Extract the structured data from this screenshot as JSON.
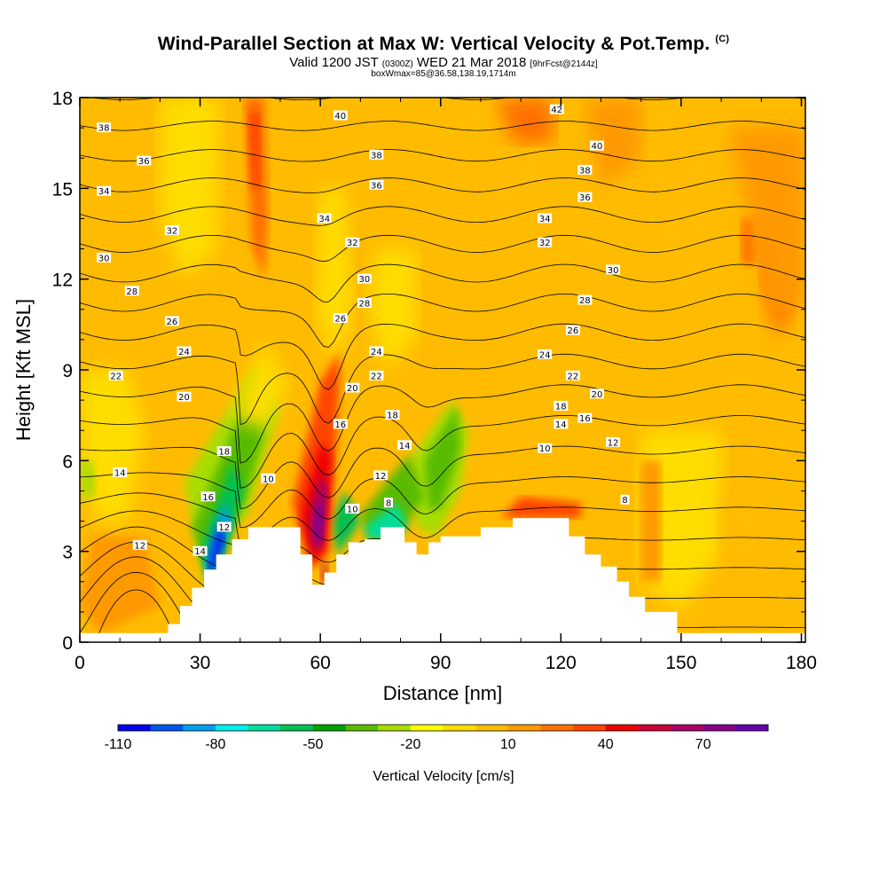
{
  "header": {
    "title": "Wind-Parallel Section at Max W: Vertical Velocity & Pot.Temp.",
    "title_tag": "(C)",
    "subtitle_a": "Valid 1200 JST",
    "subtitle_b": "(0300Z)",
    "subtitle_c": "WED 21 Mar 2018",
    "subtitle_d": "[9hrFcst@2144z]",
    "subtitle_line2": "boxWmax=85@36.58,138.19,1714m"
  },
  "chart_data": {
    "type": "heatmap",
    "xlabel": "Distance [nm]",
    "ylabel": "Height [Kft MSL]",
    "xlim": [
      0,
      181
    ],
    "ylim": [
      0,
      18
    ],
    "x_ticks": [
      "0",
      "30",
      "60",
      "90",
      "120",
      "150",
      "180"
    ],
    "y_ticks": [
      "0",
      "3",
      "6",
      "9",
      "12",
      "15",
      "18"
    ],
    "colorbar": {
      "label": "Vertical Velocity [cm/s]",
      "tick_labels": [
        "-110",
        "-80",
        "-50",
        "-20",
        "10",
        "40",
        "70"
      ],
      "colors": [
        "#0000ee",
        "#0055ee",
        "#00a0ee",
        "#00eeee",
        "#00dd99",
        "#00c050",
        "#00a000",
        "#58bb00",
        "#a8dd00",
        "#ffff00",
        "#ffdd00",
        "#ffbb00",
        "#ff9900",
        "#ff7000",
        "#ff4400",
        "#ee0000",
        "#cc0033",
        "#aa0066",
        "#880088",
        "#6600aa"
      ]
    },
    "terrain": [
      [
        0,
        0.3
      ],
      [
        22,
        0.3
      ],
      [
        22,
        0.6
      ],
      [
        25,
        0.6
      ],
      [
        25,
        1.2
      ],
      [
        28,
        1.2
      ],
      [
        28,
        1.8
      ],
      [
        31,
        1.8
      ],
      [
        31,
        2.4
      ],
      [
        34,
        2.4
      ],
      [
        34,
        2.9
      ],
      [
        38,
        2.9
      ],
      [
        38,
        3.4
      ],
      [
        42,
        3.4
      ],
      [
        42,
        3.8
      ],
      [
        55,
        3.8
      ],
      [
        55,
        2.9
      ],
      [
        58,
        2.9
      ],
      [
        58,
        1.9
      ],
      [
        61,
        1.9
      ],
      [
        61,
        2.3
      ],
      [
        64,
        2.3
      ],
      [
        64,
        2.9
      ],
      [
        67,
        2.9
      ],
      [
        67,
        3.3
      ],
      [
        71,
        3.3
      ],
      [
        71,
        3.4
      ],
      [
        75,
        3.4
      ],
      [
        75,
        3.8
      ],
      [
        81,
        3.8
      ],
      [
        81,
        3.3
      ],
      [
        84,
        3.3
      ],
      [
        84,
        2.9
      ],
      [
        87,
        2.9
      ],
      [
        87,
        3.3
      ],
      [
        90,
        3.3
      ],
      [
        90,
        3.5
      ],
      [
        100,
        3.5
      ],
      [
        100,
        3.8
      ],
      [
        108,
        3.8
      ],
      [
        108,
        4.1
      ],
      [
        122,
        4.1
      ],
      [
        122,
        3.5
      ],
      [
        126,
        3.5
      ],
      [
        126,
        2.9
      ],
      [
        130,
        2.9
      ],
      [
        130,
        2.5
      ],
      [
        134,
        2.5
      ],
      [
        134,
        2.0
      ],
      [
        137,
        2.0
      ],
      [
        137,
        1.5
      ],
      [
        141,
        1.5
      ],
      [
        141,
        1.0
      ],
      [
        149,
        1.0
      ],
      [
        149,
        0.3
      ],
      [
        152,
        0.3
      ],
      [
        152,
        0.3
      ],
      [
        181,
        0.3
      ]
    ],
    "theta_contours": {
      "interval_k": 2,
      "labels": [
        {
          "v": "38",
          "x": 6,
          "y": 17.0
        },
        {
          "v": "36",
          "x": 16,
          "y": 15.9
        },
        {
          "v": "34",
          "x": 6,
          "y": 14.9
        },
        {
          "v": "32",
          "x": 23,
          "y": 13.6
        },
        {
          "v": "30",
          "x": 6,
          "y": 12.7
        },
        {
          "v": "28",
          "x": 13,
          "y": 11.6
        },
        {
          "v": "26",
          "x": 23,
          "y": 10.6
        },
        {
          "v": "24",
          "x": 26,
          "y": 9.6
        },
        {
          "v": "22",
          "x": 9,
          "y": 8.8
        },
        {
          "v": "20",
          "x": 26,
          "y": 8.1
        },
        {
          "v": "18",
          "x": 36,
          "y": 6.3
        },
        {
          "v": "16",
          "x": 32,
          "y": 4.8
        },
        {
          "v": "14",
          "x": 10,
          "y": 5.6
        },
        {
          "v": "14",
          "x": 30,
          "y": 3.0
        },
        {
          "v": "12",
          "x": 36,
          "y": 3.8
        },
        {
          "v": "12",
          "x": 15,
          "y": 3.2
        },
        {
          "v": "10",
          "x": 47,
          "y": 5.4
        },
        {
          "v": "40",
          "x": 65,
          "y": 17.4
        },
        {
          "v": "38",
          "x": 74,
          "y": 16.1
        },
        {
          "v": "36",
          "x": 74,
          "y": 15.1
        },
        {
          "v": "34",
          "x": 61,
          "y": 14.0
        },
        {
          "v": "32",
          "x": 68,
          "y": 13.2
        },
        {
          "v": "30",
          "x": 71,
          "y": 12.0
        },
        {
          "v": "28",
          "x": 71,
          "y": 11.2
        },
        {
          "v": "26",
          "x": 65,
          "y": 10.7
        },
        {
          "v": "24",
          "x": 74,
          "y": 9.6
        },
        {
          "v": "22",
          "x": 74,
          "y": 8.8
        },
        {
          "v": "20",
          "x": 68,
          "y": 8.4
        },
        {
          "v": "18",
          "x": 78,
          "y": 7.5
        },
        {
          "v": "16",
          "x": 65,
          "y": 7.2
        },
        {
          "v": "14",
          "x": 81,
          "y": 6.5
        },
        {
          "v": "12",
          "x": 75,
          "y": 5.5
        },
        {
          "v": "10",
          "x": 68,
          "y": 4.4
        },
        {
          "v": "8",
          "x": 77,
          "y": 4.6
        },
        {
          "v": "42",
          "x": 119,
          "y": 17.6
        },
        {
          "v": "40",
          "x": 129,
          "y": 16.4
        },
        {
          "v": "38",
          "x": 126,
          "y": 15.6
        },
        {
          "v": "36",
          "x": 126,
          "y": 14.7
        },
        {
          "v": "34",
          "x": 116,
          "y": 14.0
        },
        {
          "v": "32",
          "x": 116,
          "y": 13.2
        },
        {
          "v": "30",
          "x": 133,
          "y": 12.3
        },
        {
          "v": "28",
          "x": 126,
          "y": 11.3
        },
        {
          "v": "26",
          "x": 123,
          "y": 10.3
        },
        {
          "v": "24",
          "x": 116,
          "y": 9.5
        },
        {
          "v": "22",
          "x": 123,
          "y": 8.8
        },
        {
          "v": "20",
          "x": 129,
          "y": 8.2
        },
        {
          "v": "18",
          "x": 120,
          "y": 7.8
        },
        {
          "v": "16",
          "x": 126,
          "y": 7.4
        },
        {
          "v": "14",
          "x": 120,
          "y": 7.2
        },
        {
          "v": "12",
          "x": 133,
          "y": 6.6
        },
        {
          "v": "10",
          "x": 116,
          "y": 6.4
        },
        {
          "v": "8",
          "x": 136,
          "y": 4.7
        }
      ]
    }
  }
}
